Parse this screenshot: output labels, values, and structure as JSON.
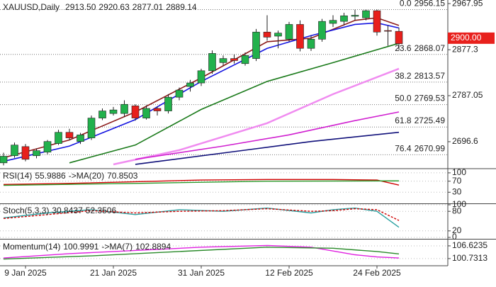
{
  "chart_data": {
    "type": "candlestick",
    "title": "XAUUSD,Daily",
    "header_values": [
      {
        "value": 2913.5,
        "label": "2913.50"
      },
      2920.63,
      2877.01,
      2889.14
    ],
    "categories": [
      null,
      null,
      "9 Jan 2025",
      null,
      null,
      null,
      null,
      null,
      null,
      null,
      "21 Jan 2025",
      null,
      null,
      null,
      null,
      null,
      null,
      null,
      "31 Jan 2025",
      null,
      null,
      null,
      null,
      null,
      null,
      null,
      "12 Feb 2025",
      null,
      null,
      null,
      null,
      null,
      null,
      null,
      "24 Feb 2025",
      null,
      null
    ],
    "open": [
      2655,
      2669,
      2687,
      2669,
      2676,
      2693,
      2715,
      2697,
      2704,
      2743,
      2752,
      2752,
      2767,
      2743,
      2762,
      2757,
      2784,
      2805,
      2812,
      2836,
      2852,
      2860,
      2850,
      2860,
      2912,
      2904,
      2898,
      2927,
      2880,
      2898,
      2929,
      2933,
      2943,
      2940,
      2954,
      2915,
      2913.5
    ],
    "high": [
      2675,
      2695,
      2692,
      2683,
      2700,
      2720,
      2722,
      2714,
      2748,
      2762,
      2765,
      2778,
      2770,
      2768,
      2766,
      2790,
      2803,
      2818,
      2840,
      2876,
      2866,
      2868,
      2872,
      2918,
      2945,
      2915,
      2932,
      2935,
      2905,
      2938,
      2945,
      2950,
      2956,
      2956,
      2956,
      2925,
      2920.63
    ],
    "low": [
      2650,
      2665,
      2658,
      2664,
      2672,
      2690,
      2700,
      2692,
      2700,
      2739,
      2748,
      2745,
      2738,
      2740,
      2748,
      2752,
      2778,
      2795,
      2806,
      2830,
      2845,
      2850,
      2846,
      2855,
      2895,
      2880,
      2893,
      2874,
      2875,
      2893,
      2922,
      2925,
      2935,
      2935,
      2905,
      2885,
      2877.01
    ],
    "close": [
      2668,
      2690,
      2662,
      2679,
      2697,
      2715,
      2704,
      2710,
      2743,
      2757,
      2759,
      2770,
      2743,
      2762,
      2757,
      2784,
      2798,
      2812,
      2836,
      2870,
      2860,
      2856,
      2866,
      2912,
      2902,
      2910,
      2927,
      2880,
      2898,
      2933,
      2935,
      2944,
      2945,
      2954,
      2912,
      2914,
      2889.14
    ],
    "up_color": "#22b14c",
    "down_color": "#e8201c",
    "ylim": [
      2645,
      2975
    ],
    "yticks": [
      2967.95,
      2877.3,
      2787.05,
      2696.6
    ],
    "price_tag": {
      "value": 2900,
      "label": "2900.00"
    },
    "moving_averages": [
      {
        "color": "#8b1a1a",
        "x": [
          0,
          6,
          12,
          18,
          24,
          28,
          32,
          34,
          36
        ],
        "values": [
          2665,
          2700,
          2755,
          2822,
          2893,
          2900,
          2935,
          2940,
          2925
        ]
      },
      {
        "color": "#1515e0",
        "x": [
          0,
          6,
          12,
          18,
          24,
          28,
          32,
          34,
          36
        ],
        "values": [
          2658,
          2688,
          2740,
          2815,
          2880,
          2905,
          2927,
          2930,
          2920
        ]
      },
      {
        "color": "#1a7a1a",
        "x": [
          6,
          12,
          18,
          24,
          30,
          36
        ],
        "values": [
          2655,
          2690,
          2760,
          2815,
          2852,
          2890
        ]
      },
      {
        "color": "#f08cf0",
        "x": [
          10,
          16,
          24,
          30,
          36
        ],
        "values": [
          2652,
          2680,
          2733,
          2790,
          2840
        ]
      },
      {
        "color": "#d020d0",
        "x": [
          12,
          20,
          26,
          32,
          36
        ],
        "values": [
          2662,
          2688,
          2710,
          2738,
          2755
        ]
      },
      {
        "color": "#10107a",
        "x": [
          12,
          22,
          28,
          36
        ],
        "values": [
          2652,
          2680,
          2697,
          2715
        ]
      }
    ],
    "fib_levels": [
      {
        "level": "0.0",
        "value": 2956.15
      },
      {
        "level": "23.6",
        "value": 2868.07
      },
      {
        "level": "38.2",
        "value": 2813.57
      },
      {
        "level": "50.0",
        "value": 2769.53
      },
      {
        "level": "61.8",
        "value": 2725.49
      },
      {
        "level": "76.4",
        "value": 2670.99
      }
    ],
    "panels": [
      {
        "legend": [
          "RSI(14)",
          55.9886,
          "->MA(20)",
          70.8503
        ],
        "ylim": [
          -5,
          110
        ],
        "yticks": [
          30,
          70,
          100
        ],
        "series": [
          {
            "color": "#d00000",
            "x": [
              0,
              6,
              12,
              18,
              24,
              30,
              34,
              36
            ],
            "values": [
              58,
              62,
              68,
              74,
              76,
              76,
              74,
              56
            ]
          },
          {
            "color": "#2a9a2a",
            "x": [
              0,
              12,
              24,
              36
            ],
            "values": [
              55,
              62,
              70,
              71
            ]
          }
        ]
      },
      {
        "legend": [
          "Stoch(5,3,3)",
          30.8437,
          52.3506
        ],
        "ylim": [
          0,
          100
        ],
        "yticks": [
          0,
          20,
          80,
          100
        ],
        "series": [
          {
            "color": "#2aa0a0",
            "x": [
              0,
              4,
              8,
              12,
              16,
              20,
              24,
              28,
              30,
              32,
              34,
              36
            ],
            "values": [
              60,
              75,
              85,
              70,
              85,
              80,
              90,
              75,
              85,
              90,
              80,
              31
            ]
          },
          {
            "color": "#d00000",
            "dashed": true,
            "x": [
              0,
              4,
              8,
              12,
              16,
              20,
              24,
              28,
              30,
              32,
              34,
              36
            ],
            "values": [
              58,
              70,
              82,
              75,
              80,
              82,
              88,
              80,
              82,
              88,
              85,
              52
            ]
          }
        ]
      },
      {
        "legend": [
          "Momentum(14)",
          100.9991,
          "->MA(7)",
          102.8894
        ],
        "ylim": [
          98.4,
          108.9
        ],
        "yticks": [
          100.7313,
          106.6235
        ],
        "series": [
          {
            "color": "#e020e0",
            "x": [
              0,
              6,
              12,
              18,
              24,
              28,
              32,
              34,
              36
            ],
            "values": [
              101,
              103,
              104.5,
              106,
              106.8,
              106,
              102.5,
              101.5,
              100.99
            ]
          },
          {
            "color": "#2a8a2a",
            "x": [
              0,
              8,
              16,
              24,
              30,
              34,
              36
            ],
            "values": [
              100.5,
              102,
              104,
              106,
              105.5,
              104,
              102.89
            ]
          }
        ]
      }
    ]
  }
}
